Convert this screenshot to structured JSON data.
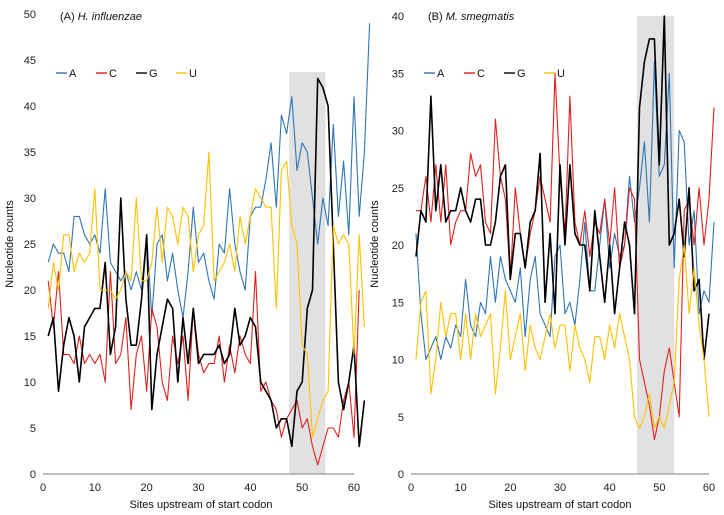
{
  "chart_data": [
    {
      "type": "line",
      "title_prefix": "(A) ",
      "title_italic": "H. influenzae",
      "xlabel": "Sites upstream of start codon",
      "ylabel": "Nucleotide counts",
      "xlim": [
        0,
        60
      ],
      "ylim": [
        0,
        50
      ],
      "xticks": [
        0,
        10,
        20,
        30,
        40,
        50,
        60
      ],
      "yticks": [
        0,
        5,
        10,
        15,
        20,
        25,
        30,
        35,
        40,
        45,
        50
      ],
      "highlight_x": [
        47.5,
        54.5
      ],
      "legend_position": "top-left",
      "series": [
        {
          "name": "A",
          "color": "#2e75b6",
          "values": [
            23,
            25,
            24,
            24,
            22,
            28,
            28,
            26,
            25,
            26,
            24,
            31,
            23,
            22,
            21,
            22,
            20,
            22,
            20,
            26,
            17,
            25,
            26,
            21,
            24,
            20,
            17,
            22,
            29,
            23,
            24,
            21,
            19,
            25,
            24,
            31,
            25,
            22,
            20,
            28,
            29,
            29,
            32,
            36,
            29,
            39,
            37,
            41,
            33,
            36,
            35,
            30,
            25,
            30,
            27,
            38,
            28,
            34,
            26,
            41,
            28,
            35,
            49
          ]
        },
        {
          "name": "C",
          "color": "#e0201d",
          "values": [
            21,
            16,
            22,
            13,
            13,
            12,
            15,
            12,
            13,
            12,
            13,
            10,
            22,
            12,
            13,
            17,
            7,
            13,
            15,
            9,
            18,
            16,
            10,
            8,
            15,
            12,
            15,
            8,
            18,
            13,
            11,
            12,
            12,
            15,
            10,
            14,
            11,
            15,
            13,
            12,
            22,
            9,
            10,
            8,
            7,
            4,
            6,
            7,
            8,
            5,
            6,
            3,
            1,
            3,
            5,
            5,
            4,
            8,
            10,
            4,
            20
          ]
        },
        {
          "name": "G",
          "color": "#000000",
          "values": [
            15,
            17,
            9,
            14,
            17,
            15,
            10,
            16,
            17,
            18,
            18,
            23,
            13,
            16,
            30,
            19,
            14,
            14,
            19,
            26,
            7,
            13,
            16,
            19,
            18,
            10,
            17,
            12,
            18,
            12,
            13,
            13,
            13,
            14,
            12,
            13,
            18,
            14,
            15,
            17,
            16,
            10,
            9,
            8,
            5,
            6,
            6,
            3,
            9,
            10,
            18,
            20,
            43,
            42,
            40,
            25,
            10,
            7,
            10,
            14,
            3,
            8
          ]
        },
        {
          "name": "U",
          "color": "#ffc000",
          "values": [
            18,
            23,
            20,
            26,
            26,
            22,
            24,
            23,
            24,
            31,
            20,
            20,
            20,
            19,
            20,
            22,
            21,
            30,
            21,
            21,
            23,
            29,
            23,
            29,
            28,
            25,
            29,
            28,
            22,
            26,
            27,
            35,
            21,
            22,
            23,
            25,
            22,
            28,
            25,
            28,
            31,
            30,
            29,
            29,
            18,
            33,
            34,
            27,
            25,
            14,
            13,
            4,
            6,
            8,
            9,
            27,
            25,
            26,
            25,
            13,
            26,
            16
          ]
        }
      ]
    },
    {
      "type": "line",
      "title_prefix": "(B) ",
      "title_italic": "M. smegmatis",
      "xlabel": "Sites upstream of start codon",
      "ylabel": "Nucleotide counts",
      "xlim": [
        0,
        60
      ],
      "ylim": [
        0,
        40
      ],
      "xticks": [
        0,
        10,
        20,
        30,
        40,
        50,
        60
      ],
      "yticks": [
        0,
        5,
        10,
        15,
        20,
        25,
        30,
        35,
        40
      ],
      "highlight_x": [
        45.5,
        53
      ],
      "legend_position": "top-left",
      "series": [
        {
          "name": "A",
          "color": "#2e75b6",
          "values": [
            21,
            14,
            10,
            11,
            12,
            10,
            12,
            11,
            13,
            12,
            17,
            13,
            12,
            15,
            14,
            19,
            15,
            19,
            17,
            16,
            15,
            18,
            12,
            17,
            19,
            14,
            13,
            12,
            19,
            20,
            14,
            15,
            13,
            17,
            22,
            16,
            16,
            20,
            24,
            18,
            21,
            19,
            20,
            26,
            22,
            25,
            29,
            22,
            36,
            26,
            27,
            35,
            18,
            30,
            29,
            20,
            23,
            14,
            16,
            15,
            22
          ]
        },
        {
          "name": "C",
          "color": "#e0201d",
          "values": [
            23,
            23,
            26,
            22,
            27,
            22,
            27,
            20,
            22,
            23,
            23,
            28,
            26,
            27,
            22,
            21,
            31,
            26,
            24,
            17,
            25,
            21,
            18,
            21,
            23,
            26,
            24,
            22,
            35,
            26,
            21,
            33,
            22,
            20,
            23,
            19,
            22,
            21,
            24,
            20,
            25,
            18,
            20,
            25,
            24,
            10,
            8,
            6,
            3,
            5,
            9,
            11,
            8,
            5,
            23,
            24,
            20,
            25,
            20,
            24,
            32
          ]
        },
        {
          "name": "G",
          "color": "#000000",
          "values": [
            19,
            23,
            22,
            33,
            23,
            27,
            22,
            23,
            23,
            25,
            23,
            22,
            24,
            24,
            20,
            20,
            22,
            26,
            27,
            17,
            21,
            21,
            18,
            22,
            23,
            28,
            15,
            21,
            14,
            27,
            20,
            27,
            21,
            20,
            20,
            16,
            23,
            19,
            15,
            20,
            14,
            18,
            22,
            20,
            14,
            32,
            36,
            38,
            38,
            27,
            40,
            20,
            21,
            24,
            19,
            25,
            16,
            17,
            10,
            14
          ]
        },
        {
          "name": "U",
          "color": "#ffc000",
          "values": [
            10,
            15,
            16,
            7,
            10,
            15,
            12,
            14,
            14,
            10,
            14,
            10,
            14,
            12,
            13,
            14,
            7,
            11,
            16,
            10,
            12,
            14,
            9,
            13,
            11,
            10,
            12,
            14,
            11,
            13,
            13,
            9,
            13,
            11,
            10,
            8,
            12,
            12,
            10,
            13,
            11,
            14,
            12,
            10,
            5,
            4,
            5,
            7,
            4,
            5,
            4,
            6,
            8,
            17,
            20,
            14,
            18,
            13,
            10,
            5
          ]
        }
      ]
    }
  ]
}
